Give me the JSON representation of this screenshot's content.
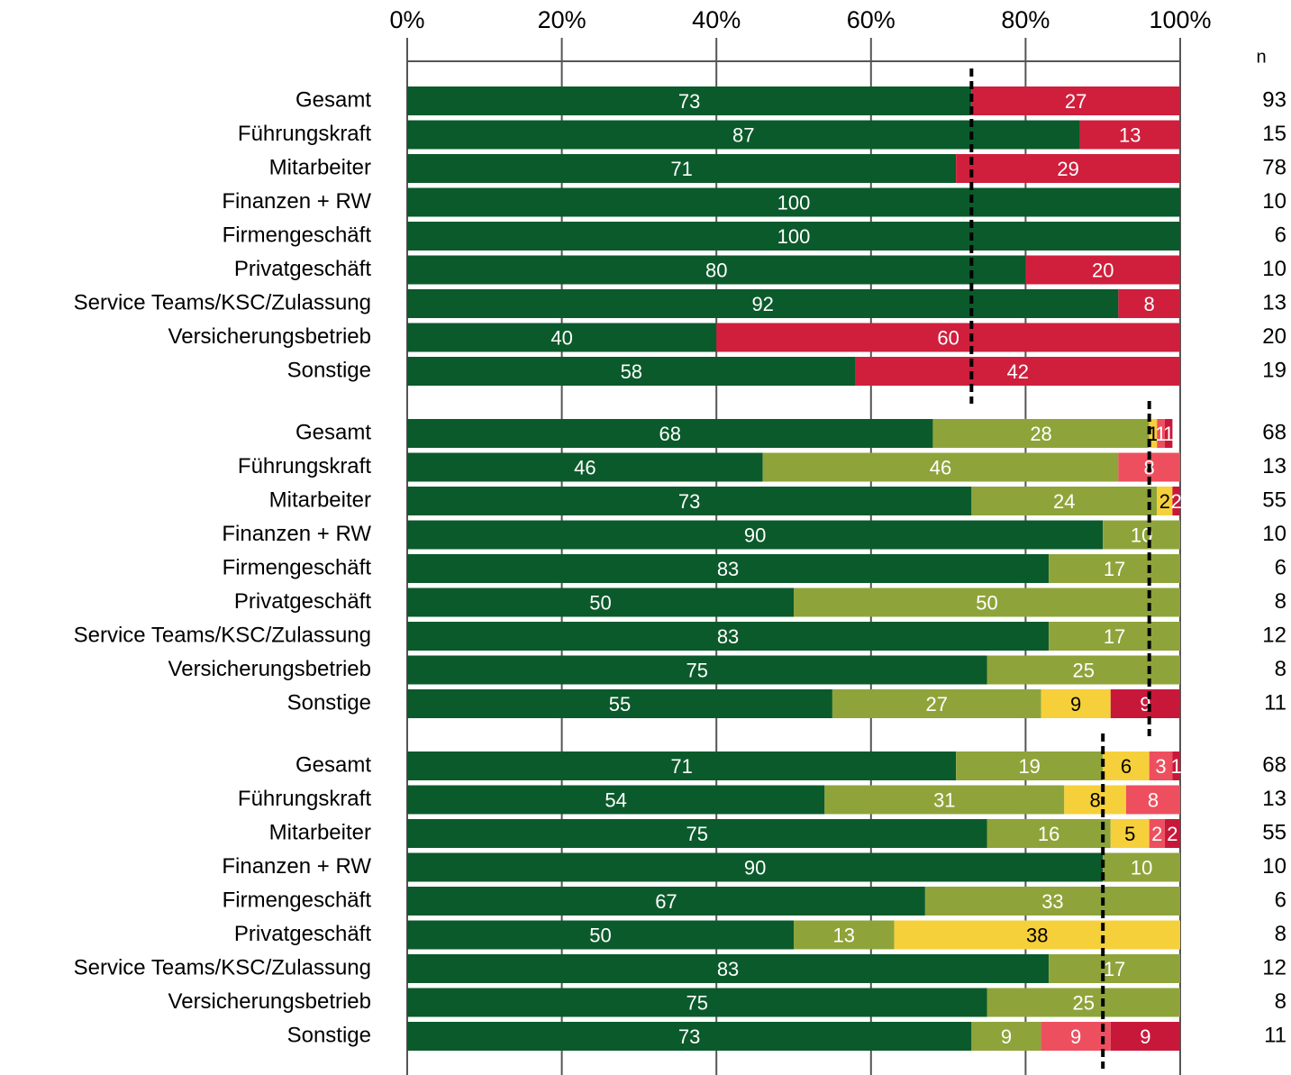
{
  "chart_data": {
    "type": "bar",
    "orientation": "horizontal",
    "stacked": true,
    "xlim": [
      0,
      100
    ],
    "xticks": [
      {
        "value": 0,
        "label": "0%"
      },
      {
        "value": 20,
        "label": "20%"
      },
      {
        "value": 40,
        "label": "40%"
      },
      {
        "value": 60,
        "label": "60%"
      },
      {
        "value": 80,
        "label": "80%"
      },
      {
        "value": 100,
        "label": "100%"
      }
    ],
    "grid": true,
    "n_label": "n",
    "categories": [
      "Gesamt",
      "Führungskraft",
      "Mitarbeiter",
      "Finanzen + RW",
      "Firmengeschäft",
      "Privatgeschäft",
      "Service Teams/KSC/Zulassung",
      "Versicherungsbetrieb",
      "Sonstige"
    ],
    "groups": [
      {
        "n": [
          93,
          15,
          78,
          10,
          6,
          10,
          13,
          20,
          19
        ],
        "reference": 73,
        "series": [
          {
            "color": "#0b5a2b",
            "values": [
              73,
              87,
              71,
              100,
              100,
              80,
              92,
              40,
              58
            ]
          },
          {
            "color": "#cf1f3c",
            "values": [
              27,
              13,
              29,
              null,
              null,
              20,
              8,
              60,
              42
            ]
          }
        ]
      },
      {
        "n": [
          68,
          13,
          55,
          10,
          6,
          8,
          12,
          8,
          11
        ],
        "reference": 96,
        "series": [
          {
            "color": "#0b5a2b",
            "values": [
              68,
              46,
              73,
              90,
              83,
              50,
              83,
              75,
              55
            ]
          },
          {
            "color": "#8ea43a",
            "values": [
              28,
              46,
              24,
              10,
              17,
              50,
              17,
              25,
              27
            ]
          },
          {
            "color": "#f6d03a",
            "values": [
              1,
              null,
              2,
              null,
              null,
              null,
              null,
              null,
              9
            ]
          },
          {
            "color": "#ee4f5e",
            "values": [
              1,
              8,
              null,
              null,
              null,
              null,
              null,
              null,
              null
            ]
          },
          {
            "color": "#c8183a",
            "values": [
              1,
              null,
              2,
              null,
              null,
              null,
              null,
              null,
              9
            ]
          }
        ]
      },
      {
        "n": [
          68,
          13,
          55,
          10,
          6,
          8,
          12,
          8,
          11
        ],
        "reference": 90,
        "series": [
          {
            "color": "#0b5a2b",
            "values": [
              71,
              54,
              75,
              90,
              67,
              50,
              83,
              75,
              73
            ]
          },
          {
            "color": "#8ea43a",
            "values": [
              19,
              31,
              16,
              10,
              33,
              13,
              17,
              25,
              9
            ]
          },
          {
            "color": "#f6d03a",
            "values": [
              6,
              8,
              5,
              null,
              null,
              38,
              null,
              null,
              null
            ]
          },
          {
            "color": "#ee4f5e",
            "values": [
              3,
              8,
              2,
              null,
              null,
              null,
              null,
              null,
              9
            ]
          },
          {
            "color": "#c8183a",
            "values": [
              1,
              null,
              2,
              null,
              null,
              null,
              null,
              null,
              9
            ]
          }
        ]
      }
    ]
  }
}
